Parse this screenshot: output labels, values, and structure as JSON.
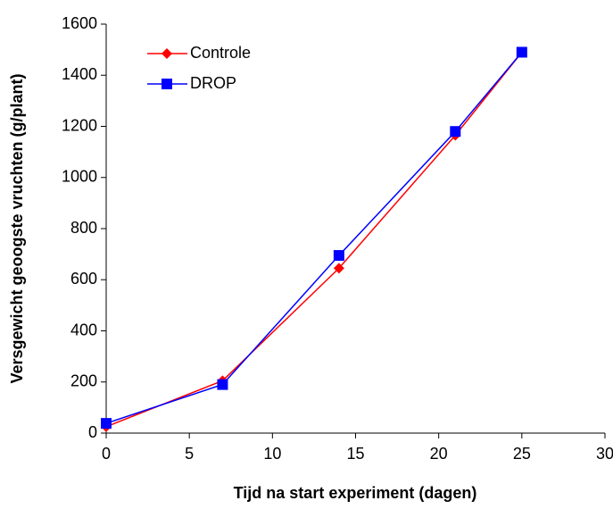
{
  "chart_data": {
    "type": "line",
    "xlabel": "Tijd na start experiment (dagen)",
    "ylabel": "Versgewicht geoogste vruchten (g/plant)",
    "x": [
      0,
      7,
      14,
      21,
      25
    ],
    "series": [
      {
        "name": "Controle",
        "color": "#ff0000",
        "marker": "diamond",
        "values": [
          25,
          205,
          645,
          1165,
          1490
        ]
      },
      {
        "name": "DROP",
        "color": "#0000ff",
        "marker": "square",
        "values": [
          38,
          190,
          695,
          1180,
          1490
        ]
      }
    ],
    "xlim": [
      0,
      30
    ],
    "xticks": [
      0,
      5,
      10,
      15,
      20,
      25,
      30
    ],
    "ylim": [
      0,
      1600
    ],
    "yticks": [
      0,
      200,
      400,
      600,
      800,
      1000,
      1200,
      1400,
      1600
    ],
    "grid": false,
    "legend": "upper left"
  }
}
